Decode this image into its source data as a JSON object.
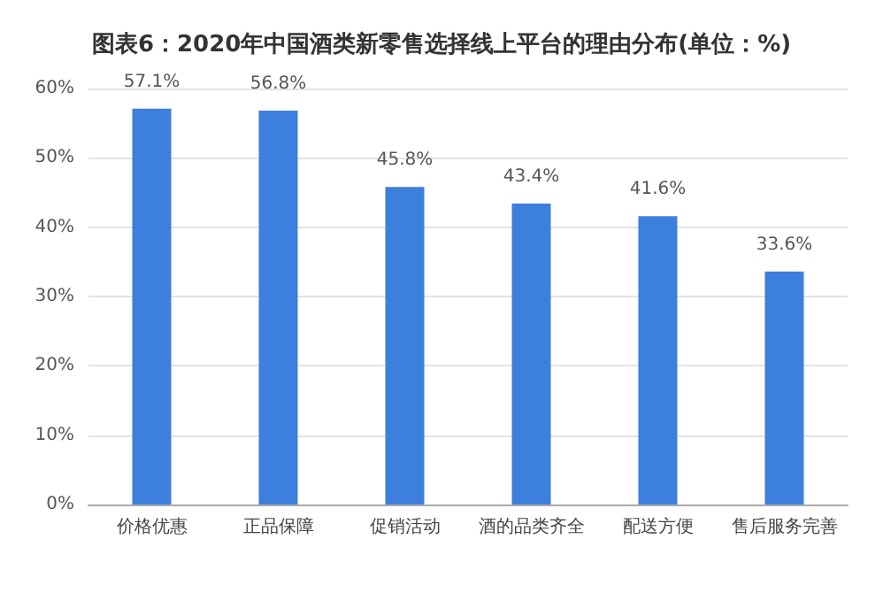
{
  "chart_data": {
    "type": "bar",
    "title": "图表6：2020年中国酒类新零售选择线上平台的理由分布(单位：%)",
    "categories": [
      "价格优惠",
      "正品保障",
      "促销活动",
      "酒的品类齐全",
      "配送方便",
      "售后服务完善"
    ],
    "values": [
      57.1,
      56.8,
      45.8,
      43.4,
      41.6,
      33.6
    ],
    "value_labels": [
      "57.1%",
      "56.8%",
      "45.8%",
      "43.4%",
      "41.6%",
      "33.6%"
    ],
    "color": "#3d7fdc",
    "ylim": [
      0,
      60
    ],
    "yticks": [
      {
        "value": 0,
        "label": "0%"
      },
      {
        "value": 10,
        "label": "10%"
      },
      {
        "value": 20,
        "label": "20%"
      },
      {
        "value": 30,
        "label": "30%"
      },
      {
        "value": 40,
        "label": "40%"
      },
      {
        "value": 50,
        "label": "50%"
      },
      {
        "value": 60,
        "label": "60%"
      }
    ],
    "grid": "y"
  }
}
